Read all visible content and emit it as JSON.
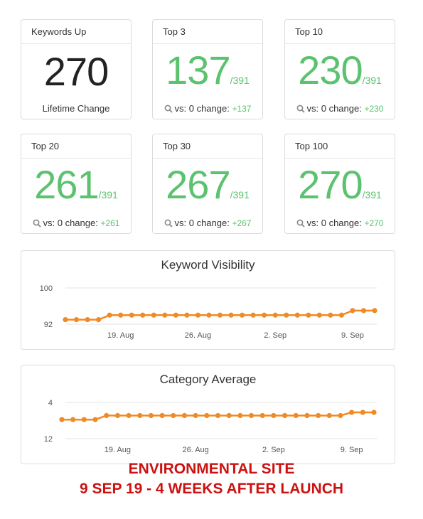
{
  "cards": [
    {
      "title": "Keywords Up",
      "value": "270",
      "total": "",
      "foot": "Lifetime Change",
      "change": ""
    },
    {
      "title": "Top 3",
      "value": "137",
      "total": "/391",
      "foot": "vs: 0 change:",
      "change": "+137"
    },
    {
      "title": "Top 10",
      "value": "230",
      "total": "/391",
      "foot": "vs: 0 change:",
      "change": "+230"
    },
    {
      "title": "Top 20",
      "value": "261",
      "total": "/391",
      "foot": "vs: 0 change:",
      "change": "+261"
    },
    {
      "title": "Top 30",
      "value": "267",
      "total": "/391",
      "foot": "vs: 0 change:",
      "change": "+267"
    },
    {
      "title": "Top 100",
      "value": "270",
      "total": "/391",
      "foot": "vs: 0 change:",
      "change": "+270"
    }
  ],
  "chart_data": [
    {
      "type": "line",
      "title": "Keyword Visibility",
      "x_tick_labels": [
        "19. Aug",
        "26. Aug",
        "2. Sep",
        "9. Sep"
      ],
      "y_tick_labels": [
        "100",
        "92"
      ],
      "grid": true,
      "legend": "none",
      "series_color": "#f08a24",
      "x": [
        "2019-08-14",
        "2019-08-15",
        "2019-08-16",
        "2019-08-17",
        "2019-08-18",
        "2019-08-19",
        "2019-08-20",
        "2019-08-21",
        "2019-08-22",
        "2019-08-23",
        "2019-08-24",
        "2019-08-25",
        "2019-08-26",
        "2019-08-27",
        "2019-08-28",
        "2019-08-29",
        "2019-08-30",
        "2019-08-31",
        "2019-09-01",
        "2019-09-02",
        "2019-09-03",
        "2019-09-04",
        "2019-09-05",
        "2019-09-06",
        "2019-09-07",
        "2019-09-08",
        "2019-09-09",
        "2019-09-10",
        "2019-09-11"
      ],
      "values": [
        93,
        93,
        93,
        93,
        94,
        94,
        94,
        94,
        94,
        94,
        94,
        94,
        94,
        94,
        94,
        94,
        94,
        94,
        94,
        94,
        94,
        94,
        94,
        94,
        94,
        94,
        95,
        95,
        95
      ],
      "ylim": [
        92,
        100
      ]
    },
    {
      "type": "line",
      "title": "Category Average",
      "x_tick_labels": [
        "19. Aug",
        "26. Aug",
        "2. Sep",
        "9. Sep"
      ],
      "y_tick_labels": [
        "4",
        "12"
      ],
      "grid": true,
      "legend": "none",
      "series_color": "#f08a24",
      "x": [
        "2019-08-14",
        "2019-08-15",
        "2019-08-16",
        "2019-08-17",
        "2019-08-18",
        "2019-08-19",
        "2019-08-20",
        "2019-08-21",
        "2019-08-22",
        "2019-08-23",
        "2019-08-24",
        "2019-08-25",
        "2019-08-26",
        "2019-08-27",
        "2019-08-28",
        "2019-08-29",
        "2019-08-30",
        "2019-08-31",
        "2019-09-01",
        "2019-09-02",
        "2019-09-03",
        "2019-09-04",
        "2019-09-05",
        "2019-09-06",
        "2019-09-07",
        "2019-09-08",
        "2019-09-09",
        "2019-09-10",
        "2019-09-11"
      ],
      "values": [
        7.8,
        7.8,
        7.8,
        7.8,
        6.9,
        6.9,
        6.9,
        6.9,
        6.9,
        6.9,
        6.9,
        6.9,
        6.9,
        6.9,
        6.9,
        6.9,
        6.9,
        6.9,
        6.9,
        6.9,
        6.9,
        6.9,
        6.9,
        6.9,
        6.9,
        6.9,
        6.2,
        6.2,
        6.2
      ],
      "ylim": [
        4,
        12
      ],
      "y_reversed": true
    }
  ],
  "caption": {
    "line1": "ENVIRONMENTAL SITE",
    "line2": "9 SEP 19 - 4 WEEKS AFTER LAUNCH"
  }
}
